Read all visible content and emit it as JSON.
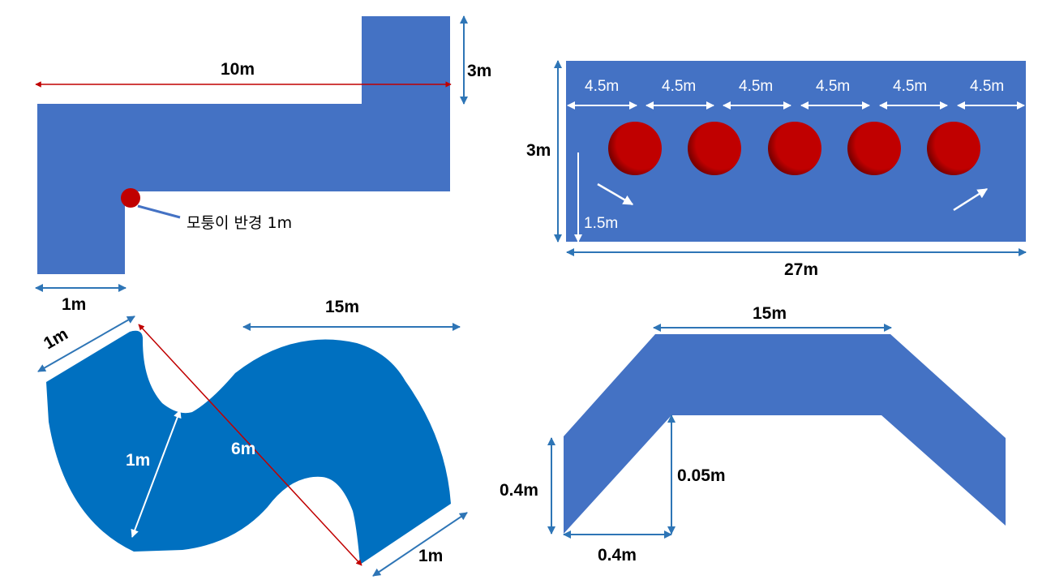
{
  "colors": {
    "shape_blue": "#4472c4",
    "s_shape_blue": "#0070c0",
    "dimension_blue": "#2e75b6",
    "red_line": "#c00000",
    "hole_red": "#c00000",
    "white": "#ffffff"
  },
  "l_shape": {
    "length_label": "10m",
    "height_label": "3m",
    "width_label": "1m",
    "corner_note": "모퉁이 반경 1m"
  },
  "hole_plate": {
    "height_label": "3m",
    "length_label": "27m",
    "spacing_labels": [
      "4.5m",
      "4.5m",
      "4.5m",
      "4.5m",
      "4.5m",
      "4.5m"
    ],
    "hole_offset_label": "1.5m",
    "hole_count": 5
  },
  "s_shape": {
    "top_width_label": "1m",
    "span_label": "15m",
    "inner_label": "1m",
    "diagonal_label": "6m",
    "bottom_width_label": "1m"
  },
  "trapezoid": {
    "top_label": "15m",
    "left_height_label": "0.4m",
    "inner_height_label": "0.05m",
    "base_label": "0.4m"
  }
}
